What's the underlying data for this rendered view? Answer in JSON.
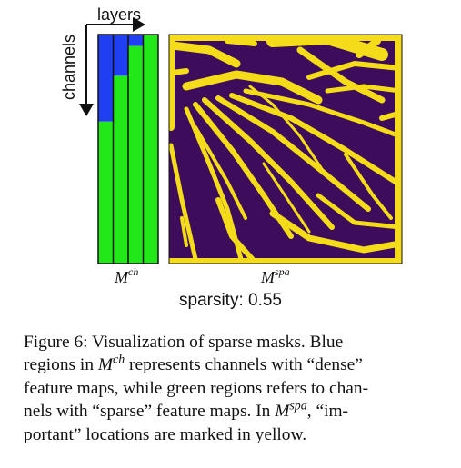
{
  "figure": {
    "axis_labels": {
      "layers": "layers",
      "channels": "channels"
    },
    "labels": {
      "channel_mask_base": "M",
      "channel_mask_sup": "ch",
      "spatial_mask_base": "M",
      "spatial_mask_sup": "spa"
    },
    "sparsity_text": "sparsity: 0.55",
    "colors": {
      "dense_channel": "#1f3ff0",
      "sparse_channel": "#22e81a",
      "important_location": "#f5dc1a",
      "background_location": "#3d0d5c"
    },
    "channel_mask": {
      "layers": 4,
      "dense_fraction_per_layer": [
        0.38,
        0.18,
        0.05,
        0.0
      ]
    }
  },
  "caption": {
    "lines": [
      {
        "text_before": "Figure 6: Visualization of sparse masks. Blue",
        "math_base": "",
        "math_sup": "",
        "text_after": ""
      },
      {
        "text_before": "regions in ",
        "math_base": "M",
        "math_sup": "ch",
        "text_after": " represents channels with “dense”"
      },
      {
        "text_before": "feature maps, while green regions refers to chan-",
        "math_base": "",
        "math_sup": "",
        "text_after": ""
      },
      {
        "text_before": "nels with “sparse” feature maps. In ",
        "math_base": "M",
        "math_sup": "spa",
        "text_after": ", “im-"
      },
      {
        "text_before": "portant” locations are marked in yellow.",
        "math_base": "",
        "math_sup": "",
        "text_after": ""
      }
    ]
  }
}
